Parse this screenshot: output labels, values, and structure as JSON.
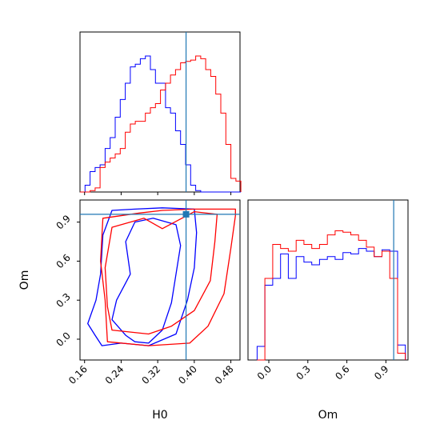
{
  "chart_data": {
    "type": "corner",
    "parameters": [
      "H0",
      "Om"
    ],
    "truths": {
      "H0": 0.382,
      "Om": 0.96
    },
    "colors": {
      "series_a": "#0000ff",
      "series_b": "#ff0000",
      "truth": "#1f77b4"
    },
    "ranges": {
      "H0": [
        0.15,
        0.5
      ],
      "Om": [
        -0.16,
        1.07
      ]
    },
    "ticks": {
      "H0": [
        "0.16",
        "0.24",
        "0.32",
        "0.40",
        "0.48"
      ],
      "Om": [
        "0.0",
        "0.3",
        "0.6",
        "0.9"
      ]
    },
    "axis_labels": {
      "H0": "H0",
      "Om": "Om"
    },
    "hist_H0": {
      "bin_edges": [
        0.15,
        0.161,
        0.172,
        0.183,
        0.194,
        0.205,
        0.216,
        0.227,
        0.238,
        0.249,
        0.26,
        0.271,
        0.282,
        0.293,
        0.304,
        0.315,
        0.326,
        0.337,
        0.348,
        0.359,
        0.37,
        0.381,
        0.392,
        0.403,
        0.414,
        0.425,
        0.436,
        0.447,
        0.458,
        0.469,
        0.48,
        0.491,
        0.502
      ],
      "series": [
        {
          "values": [
            0,
            0.05,
            0.15,
            0.18,
            0.2,
            0.32,
            0.4,
            0.55,
            0.68,
            0.8,
            0.92,
            0.94,
            0.98,
            1.0,
            0.9,
            0.8,
            0.8,
            0.62,
            0.58,
            0.45,
            0.35,
            0.2,
            0.05,
            0.01,
            0,
            0,
            0,
            0,
            0,
            0,
            0,
            0
          ]
        },
        {
          "values": [
            0,
            0,
            0.01,
            0.03,
            0.18,
            0.22,
            0.25,
            0.28,
            0.32,
            0.44,
            0.5,
            0.52,
            0.52,
            0.58,
            0.62,
            0.65,
            0.75,
            0.8,
            0.86,
            0.9,
            0.95,
            0.96,
            0.97,
            1.0,
            0.98,
            0.9,
            0.85,
            0.72,
            0.58,
            0.35,
            0.1,
            0.08
          ]
        }
      ]
    },
    "hist_Om": {
      "bin_edges": [
        -0.09,
        -0.03,
        0.03,
        0.09,
        0.15,
        0.21,
        0.27,
        0.33,
        0.39,
        0.45,
        0.51,
        0.57,
        0.63,
        0.69,
        0.75,
        0.81,
        0.87,
        0.93,
        0.99,
        1.05
      ],
      "series": [
        {
          "values": [
            0.1,
            0.55,
            0.6,
            0.78,
            0.6,
            0.76,
            0.72,
            0.7,
            0.74,
            0.76,
            0.74,
            0.79,
            0.78,
            0.82,
            0.8,
            0.76,
            0.81,
            0.8,
            0.11
          ]
        },
        {
          "values": [
            0,
            0.6,
            0.85,
            0.82,
            0.8,
            0.88,
            0.85,
            0.82,
            0.85,
            0.92,
            0.95,
            0.94,
            0.92,
            0.88,
            0.83,
            0.76,
            0.8,
            0.6,
            0.05
          ]
        }
      ]
    },
    "contours_2d": [
      {
        "series": "series_a",
        "level": "inner",
        "points": [
          [
            0.25,
            0.03
          ],
          [
            0.27,
            -0.02
          ],
          [
            0.3,
            -0.03
          ],
          [
            0.33,
            0.07
          ],
          [
            0.35,
            0.28
          ],
          [
            0.36,
            0.5
          ],
          [
            0.37,
            0.72
          ],
          [
            0.36,
            0.88
          ],
          [
            0.31,
            0.93
          ],
          [
            0.27,
            0.9
          ],
          [
            0.25,
            0.75
          ],
          [
            0.26,
            0.5
          ],
          [
            0.23,
            0.3
          ],
          [
            0.22,
            0.15
          ],
          [
            0.25,
            0.03
          ]
        ]
      },
      {
        "series": "series_a",
        "level": "outer",
        "points": [
          [
            0.167,
            0.12
          ],
          [
            0.183,
            0.03
          ],
          [
            0.198,
            -0.05
          ],
          [
            0.24,
            -0.03
          ],
          [
            0.3,
            -0.05
          ],
          [
            0.36,
            0.04
          ],
          [
            0.385,
            0.3
          ],
          [
            0.4,
            0.55
          ],
          [
            0.405,
            0.82
          ],
          [
            0.4,
            1.0
          ],
          [
            0.33,
            1.01
          ],
          [
            0.27,
            1.0
          ],
          [
            0.22,
            0.99
          ],
          [
            0.2,
            0.8
          ],
          [
            0.195,
            0.5
          ],
          [
            0.185,
            0.3
          ],
          [
            0.167,
            0.12
          ]
        ]
      },
      {
        "series": "series_b",
        "level": "inner",
        "points": [
          [
            0.22,
            0.07
          ],
          [
            0.3,
            0.04
          ],
          [
            0.35,
            0.1
          ],
          [
            0.4,
            0.22
          ],
          [
            0.435,
            0.45
          ],
          [
            0.445,
            0.75
          ],
          [
            0.45,
            0.96
          ],
          [
            0.4,
            0.98
          ],
          [
            0.33,
            0.85
          ],
          [
            0.29,
            0.93
          ],
          [
            0.22,
            0.86
          ],
          [
            0.205,
            0.55
          ],
          [
            0.21,
            0.25
          ],
          [
            0.22,
            0.07
          ]
        ]
      },
      {
        "series": "series_b",
        "level": "outer",
        "points": [
          [
            0.21,
            -0.02
          ],
          [
            0.3,
            -0.05
          ],
          [
            0.39,
            -0.03
          ],
          [
            0.43,
            0.1
          ],
          [
            0.465,
            0.35
          ],
          [
            0.48,
            0.7
          ],
          [
            0.49,
            0.95
          ],
          [
            0.49,
            1.0
          ],
          [
            0.4,
            1.0
          ],
          [
            0.33,
            0.99
          ],
          [
            0.28,
            0.97
          ],
          [
            0.2,
            0.93
          ],
          [
            0.195,
            0.6
          ],
          [
            0.205,
            0.3
          ],
          [
            0.21,
            -0.02
          ]
        ]
      }
    ]
  }
}
